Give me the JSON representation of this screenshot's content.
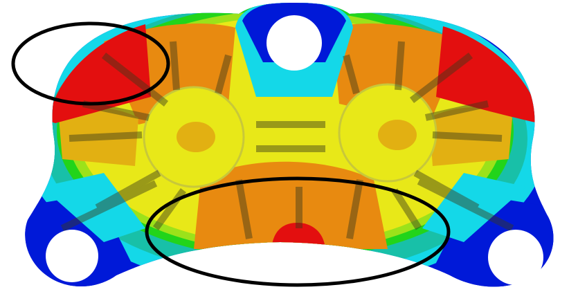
{
  "image": {
    "subject": "finite-element-contour-plot",
    "part": "bracket",
    "colors": {
      "background": "#ffffff",
      "low": "#0019d8",
      "cyan": "#14d8e8",
      "teal": "#18c0a8",
      "green": "#22d41a",
      "lime": "#9ce21a",
      "yellow": "#e8e818",
      "gold": "#e2b012",
      "orange": "#e88a10",
      "high": "#e30f0f",
      "rib_dark": "#3a3a1a",
      "highlight_ellipse": "#000000"
    }
  }
}
